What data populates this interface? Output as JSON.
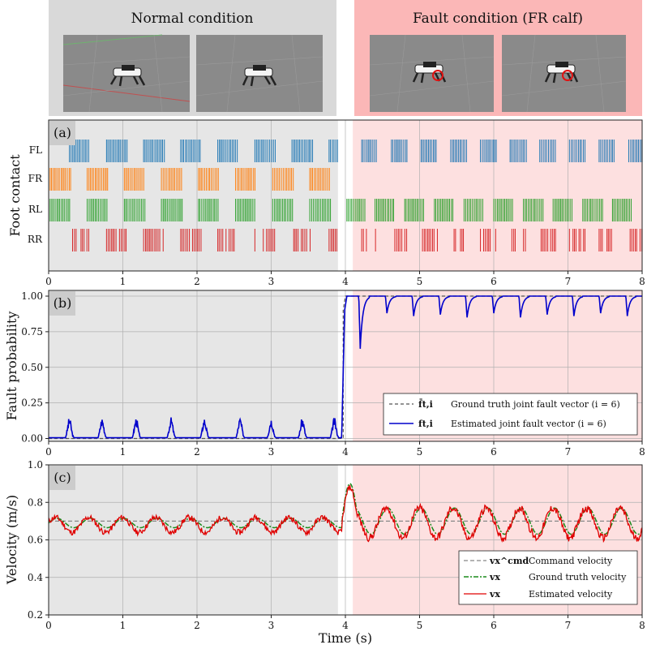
{
  "header": {
    "normal_title": "Normal condition",
    "fault_title": "Fault condition (FR calf)"
  },
  "colors": {
    "normal_bg": "#e6e6e6",
    "fault_bg": "#fde0e0",
    "header_normal_bg": "#d9d9d9",
    "header_fault_bg": "#fbb7b7",
    "FL": "#1f77b4",
    "FR": "#ff7f0e",
    "RL": "#2ca02c",
    "RR": "#d62728",
    "fault_estimated": "#0000cc",
    "fault_ground_truth": "#555555",
    "vel_command": "#888888",
    "vel_ground_truth": "#1a8a1a",
    "vel_estimated": "#e00000"
  },
  "shared": {
    "x_label": "Time (s)",
    "x_range": [
      0,
      8
    ],
    "x_ticks": [
      "0",
      "1",
      "2",
      "3",
      "4",
      "5",
      "6",
      "7",
      "8"
    ],
    "normal_region": [
      0,
      3.9
    ],
    "fault_region": [
      4.1,
      8
    ]
  },
  "chart_data": [
    {
      "id": "a",
      "type": "event",
      "panel_label": "(a)",
      "ylabel": "Foot contact",
      "rows": [
        "FL",
        "FR",
        "RL",
        "RR"
      ],
      "normal_gait_period": 0.5,
      "fault_gait_period": 0.4,
      "phase_offset": {
        "FL": 0.28,
        "FR": 0.02,
        "RL": 0.02,
        "RR": 0.28
      },
      "normal_stance_duration": 0.28,
      "fault_stance_duration": 0.22
    },
    {
      "id": "b",
      "type": "line",
      "panel_label": "(b)",
      "ylabel": "Fault probability",
      "ylim": [
        -0.02,
        1.04
      ],
      "y_ticks": [
        "0.00",
        "0.25",
        "0.50",
        "0.75",
        "1.00"
      ],
      "y_tick_values": [
        0,
        0.25,
        0.5,
        0.75,
        1.0
      ],
      "series": [
        {
          "name": "Ground truth joint fault vector (i = 6)",
          "symbol": "f̄t,i",
          "x": [
            0,
            3.97,
            3.97,
            4.0,
            8
          ],
          "y": [
            0,
            0,
            0.9,
            1.0,
            1.0
          ]
        },
        {
          "name": "Estimated joint fault vector (i = 6)",
          "symbol": "ft,i",
          "peak_times": [
            0.28,
            0.72,
            1.18,
            1.65,
            2.1,
            2.58,
            3.0,
            3.42,
            3.85
          ],
          "peak_height": 0.15,
          "dip_times": [
            4.2,
            4.56,
            4.92,
            5.28,
            5.64,
            6.0,
            6.36,
            6.72,
            7.08,
            7.44,
            7.8
          ],
          "dip_depths": [
            0.37,
            0.12,
            0.14,
            0.13,
            0.15,
            0.12,
            0.15,
            0.13,
            0.14,
            0.12,
            0.14
          ]
        }
      ]
    },
    {
      "id": "c",
      "type": "line",
      "panel_label": "(c)",
      "ylabel": "Velocity (m/s)",
      "ylim": [
        0.2,
        1.0
      ],
      "y_ticks": [
        "0.2",
        "0.4",
        "0.6",
        "0.8",
        "1.0"
      ],
      "y_tick_values": [
        0.2,
        0.4,
        0.6,
        0.8,
        1.0
      ],
      "series": [
        {
          "name": "Command velocity",
          "symbol": "vx^cmd",
          "value": 0.7
        },
        {
          "name": "Ground truth velocity",
          "symbol": "vx",
          "base": 0.69,
          "amp_normal": 0.025,
          "amp_fault": 0.07,
          "period": 0.45
        },
        {
          "name": "Estimated velocity",
          "symbol": "vx",
          "base": 0.68,
          "amp_normal": 0.04,
          "amp_fault": 0.08,
          "period": 0.45,
          "peak_at_4": 0.88
        }
      ]
    }
  ]
}
